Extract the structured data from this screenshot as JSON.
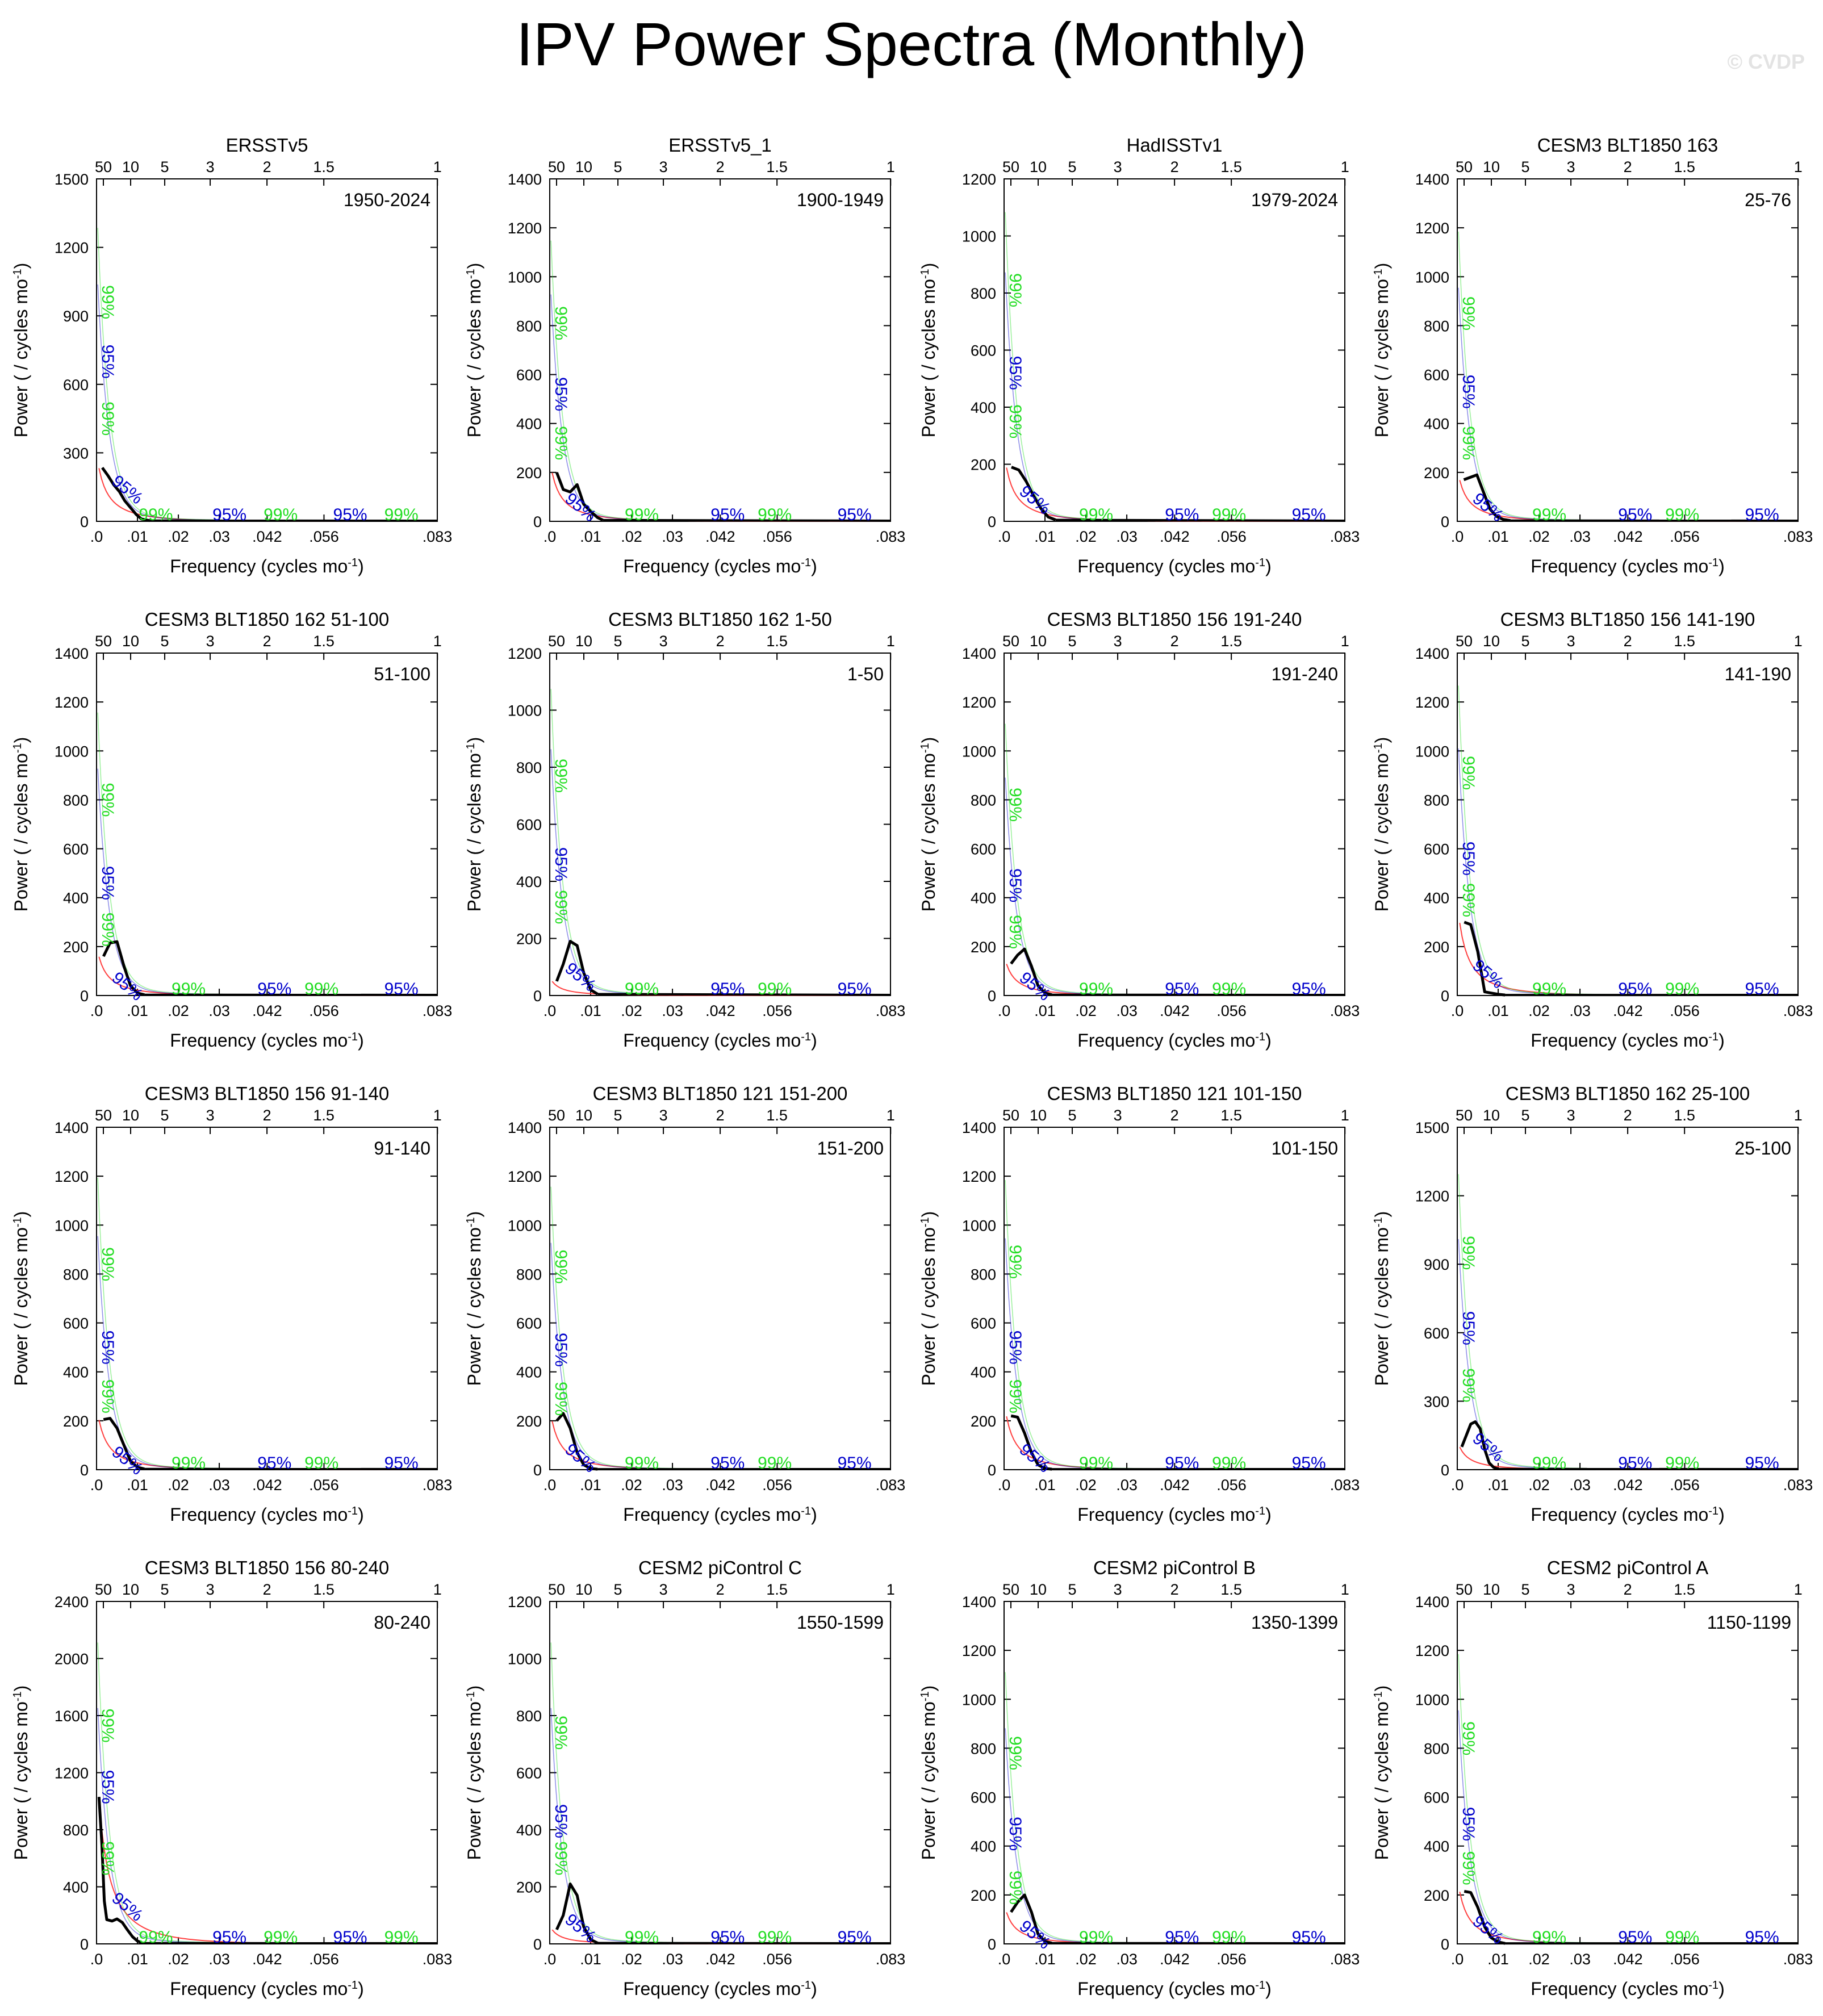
{
  "title": "IPV Power Spectra (Monthly)",
  "watermark": "© CVDP",
  "axes": {
    "xlabel": "Frequency (cycles mo",
    "xlabel_sup": "-1",
    "xlabel_end": ")",
    "ylabel": "Power ( / cycles mo",
    "ylabel_sup": "-1",
    "ylabel_end": ")",
    "xlim": [
      0,
      0.0833
    ],
    "bottom_ticks": [
      {
        "value": 0,
        "label": ".0"
      },
      {
        "value": 0.01,
        "label": ".01"
      },
      {
        "value": 0.02,
        "label": ".02"
      },
      {
        "value": 0.03,
        "label": ".03"
      },
      {
        "value": 0.0417,
        "label": ".042"
      },
      {
        "value": 0.0556,
        "label": ".056"
      },
      {
        "value": 0.0833,
        "label": ".083"
      }
    ],
    "top_ticks": [
      {
        "period": 50,
        "label": "50"
      },
      {
        "period": 10,
        "label": "10"
      },
      {
        "period": 5,
        "label": "5"
      },
      {
        "period": 3,
        "label": "3"
      },
      {
        "period": 2,
        "label": "2"
      },
      {
        "period": 1.5,
        "label": "1.5"
      },
      {
        "period": 1,
        "label": "1"
      }
    ],
    "top_axis_unit": "years"
  },
  "confidence_labels": {
    "p95": "95%",
    "p99": "99%"
  },
  "colors": {
    "spectrum": "#000000",
    "red_noise": "#ff4040",
    "p95": "#0000cc",
    "p99": "#22dd22",
    "frame": "#000000"
  },
  "chart_data": [
    {
      "type": "line",
      "title": "ERSSTv5",
      "period": "1950-2024",
      "ylim": [
        0,
        1500
      ],
      "yticks": [
        0,
        300,
        600,
        900,
        1200,
        1500
      ],
      "peak99": 1400,
      "peak95": 1130,
      "x": [
        0.0014,
        0.0028,
        0.0042,
        0.0056,
        0.0069,
        0.0083,
        0.0097,
        0.011,
        0.013
      ],
      "y": [
        235,
        200,
        160,
        130,
        90,
        60,
        30,
        10,
        3
      ],
      "lbl_upper": {
        "p99": 960,
        "p95": 700,
        "p99b": 450
      },
      "lbl_lower": {
        "p95": 120
      }
    },
    {
      "type": "line",
      "title": "ERSSTv5_1",
      "period": "1900-1949",
      "ylim": [
        0,
        1400
      ],
      "yticks": [
        0,
        200,
        400,
        600,
        800,
        1000,
        1200,
        1400
      ],
      "peak99": 1250,
      "peak95": 1010,
      "x": [
        0.0017,
        0.0033,
        0.005,
        0.0067,
        0.0083,
        0.01,
        0.0117,
        0.013
      ],
      "y": [
        200,
        130,
        120,
        150,
        70,
        40,
        15,
        5
      ],
      "lbl_upper": {
        "p99": 810,
        "p95": 520,
        "p99b": 320
      },
      "lbl_lower": {
        "p95": 40
      }
    },
    {
      "type": "line",
      "title": "HadISSTv1",
      "period": "1979-2024",
      "ylim": [
        0,
        1200
      ],
      "yticks": [
        0,
        200,
        400,
        600,
        800,
        1000,
        1200
      ],
      "peak99": 1180,
      "peak95": 950,
      "x": [
        0.0018,
        0.0036,
        0.0054,
        0.0072,
        0.009,
        0.0108,
        0.0126
      ],
      "y": [
        190,
        180,
        140,
        90,
        45,
        15,
        5
      ],
      "lbl_upper": {
        "p99": 810,
        "p95": 520,
        "p99b": 350
      },
      "lbl_lower": {
        "p95": 60
      }
    },
    {
      "type": "line",
      "title": "CESM3 BLT1850 163",
      "period": "25-76",
      "ylim": [
        0,
        1400
      ],
      "yticks": [
        0,
        200,
        400,
        600,
        800,
        1000,
        1200,
        1400
      ],
      "peak99": 1290,
      "peak95": 1040,
      "x": [
        0.0016,
        0.0032,
        0.0048,
        0.0064,
        0.008,
        0.0096,
        0.0112,
        0.013
      ],
      "y": [
        170,
        180,
        190,
        120,
        50,
        20,
        8,
        3
      ],
      "lbl_upper": {
        "p99": 850,
        "p95": 530,
        "p99b": 320
      },
      "lbl_lower": {
        "p95": 40
      }
    },
    {
      "type": "line",
      "title": "CESM3 BLT1850 162 51-100",
      "period": "51-100",
      "ylim": [
        0,
        1400
      ],
      "yticks": [
        0,
        200,
        400,
        600,
        800,
        1000,
        1200,
        1400
      ],
      "peak99": 1260,
      "peak95": 1010,
      "x": [
        0.0017,
        0.0033,
        0.005,
        0.0067,
        0.0083,
        0.01,
        0.0117
      ],
      "y": [
        160,
        215,
        220,
        120,
        40,
        10,
        3
      ],
      "lbl_upper": {
        "p99": 800,
        "p95": 460,
        "p99b": 270
      },
      "lbl_lower": {
        "p95": 20
      }
    },
    {
      "type": "line",
      "title": "CESM3 BLT1850 162 1-50",
      "period": "1-50",
      "ylim": [
        0,
        1200
      ],
      "yticks": [
        0,
        200,
        400,
        600,
        800,
        1000,
        1200
      ],
      "peak99": 1170,
      "peak95": 940,
      "x": [
        0.0017,
        0.0033,
        0.005,
        0.0067,
        0.0083,
        0.01,
        0.0117
      ],
      "y": [
        50,
        110,
        190,
        175,
        80,
        20,
        5
      ],
      "lbl_upper": {
        "p99": 770,
        "p95": 460,
        "p99b": 310
      },
      "lbl_lower": {
        "p95": 50
      }
    },
    {
      "type": "line",
      "title": "CESM3 BLT1850 156 191-240",
      "period": "191-240",
      "ylim": [
        0,
        1400
      ],
      "yticks": [
        0,
        200,
        400,
        600,
        800,
        1000,
        1200,
        1400
      ],
      "peak99": 1210,
      "peak95": 970,
      "x": [
        0.0017,
        0.0033,
        0.005,
        0.0067,
        0.0083,
        0.01,
        0.0117
      ],
      "y": [
        130,
        165,
        190,
        120,
        40,
        10,
        3
      ],
      "lbl_upper": {
        "p99": 780,
        "p95": 450,
        "p99b": 260
      },
      "lbl_lower": {
        "p95": 20
      }
    },
    {
      "type": "line",
      "title": "CESM3 BLT1850 156 141-190",
      "period": "141-190",
      "ylim": [
        0,
        1400
      ],
      "yticks": [
        0,
        200,
        400,
        600,
        800,
        1000,
        1200,
        1400
      ],
      "peak99": 1380,
      "peak95": 1100,
      "x": [
        0.0017,
        0.0033,
        0.005,
        0.0067,
        0.0083,
        0.01,
        0.0117
      ],
      "y": [
        300,
        290,
        180,
        15,
        10,
        5,
        2
      ],
      "lbl_upper": {
        "p99": 910,
        "p95": 560,
        "p99b": 390
      },
      "lbl_lower": {
        "p95": 70
      }
    },
    {
      "type": "line",
      "title": "CESM3 BLT1850 156 91-140",
      "period": "91-140",
      "ylim": [
        0,
        1400
      ],
      "yticks": [
        0,
        200,
        400,
        600,
        800,
        1000,
        1200,
        1400
      ],
      "peak99": 1300,
      "peak95": 1040,
      "x": [
        0.0017,
        0.0033,
        0.005,
        0.0067,
        0.0083,
        0.01,
        0.0117
      ],
      "y": [
        205,
        210,
        170,
        100,
        35,
        10,
        3
      ],
      "lbl_upper": {
        "p99": 840,
        "p95": 500,
        "p99b": 300
      },
      "lbl_lower": {
        "p95": 20
      }
    },
    {
      "type": "line",
      "title": "CESM3 BLT1850 121 151-200",
      "period": "151-200",
      "ylim": [
        0,
        1400
      ],
      "yticks": [
        0,
        200,
        400,
        600,
        800,
        1000,
        1200,
        1400
      ],
      "peak99": 1260,
      "peak95": 1010,
      "x": [
        0.0017,
        0.0033,
        0.005,
        0.0067,
        0.0083,
        0.01,
        0.0117
      ],
      "y": [
        200,
        230,
        170,
        70,
        20,
        5,
        2
      ],
      "lbl_upper": {
        "p99": 830,
        "p95": 490,
        "p99b": 290
      },
      "lbl_lower": {
        "p95": 30
      }
    },
    {
      "type": "line",
      "title": "CESM3 BLT1850 121 101-150",
      "period": "101-150",
      "ylim": [
        0,
        1400
      ],
      "yticks": [
        0,
        200,
        400,
        600,
        800,
        1000,
        1200,
        1400
      ],
      "peak99": 1290,
      "peak95": 1030,
      "x": [
        0.0017,
        0.0033,
        0.005,
        0.0067,
        0.0083,
        0.01,
        0.0117
      ],
      "y": [
        220,
        215,
        150,
        70,
        20,
        5,
        2
      ],
      "lbl_upper": {
        "p99": 850,
        "p95": 500,
        "p99b": 300
      },
      "lbl_lower": {
        "p95": 30
      }
    },
    {
      "type": "line",
      "title": "CESM3 BLT1850 162 25-100",
      "period": "25-100",
      "ylim": [
        0,
        1500
      ],
      "yticks": [
        0,
        300,
        600,
        900,
        1200,
        1500
      ],
      "peak99": 1410,
      "peak95": 1100,
      "x": [
        0.0011,
        0.0022,
        0.0033,
        0.0044,
        0.0056,
        0.0067,
        0.0078,
        0.0089,
        0.01
      ],
      "y": [
        100,
        150,
        200,
        210,
        180,
        90,
        30,
        10,
        3
      ],
      "lbl_upper": {
        "p99": 950,
        "p95": 620,
        "p99b": 370
      },
      "lbl_lower": {
        "p95": 80
      }
    },
    {
      "type": "line",
      "title": "CESM3 BLT1850 156 80-240",
      "period": "80-240",
      "ylim": [
        0,
        2400
      ],
      "yticks": [
        0,
        400,
        800,
        1200,
        1600,
        2000,
        2400
      ],
      "peak99": 2300,
      "peak95": 1800,
      "x": [
        0.0006,
        0.0013,
        0.0019,
        0.0025,
        0.0038,
        0.005,
        0.0063,
        0.0075,
        0.0088,
        0.01,
        0.0113
      ],
      "y": [
        1030,
        700,
        300,
        170,
        160,
        175,
        150,
        100,
        50,
        20,
        5
      ],
      "lbl_upper": {
        "p99": 1530,
        "p95": 1100,
        "p99b": 600
      },
      "lbl_lower": {
        "p95": 230
      }
    },
    {
      "type": "line",
      "title": "CESM2 piControl C",
      "period": "1550-1599",
      "ylim": [
        0,
        1200
      ],
      "yticks": [
        0,
        200,
        400,
        600,
        800,
        1000,
        1200
      ],
      "peak99": 1150,
      "peak95": 900,
      "x": [
        0.0017,
        0.0033,
        0.005,
        0.0067,
        0.0083,
        0.01,
        0.0117
      ],
      "y": [
        50,
        100,
        210,
        170,
        60,
        15,
        3
      ],
      "lbl_upper": {
        "p99": 740,
        "p95": 430,
        "p99b": 300
      },
      "lbl_lower": {
        "p95": 40
      }
    },
    {
      "type": "line",
      "title": "CESM2 piControl B",
      "period": "1350-1399",
      "ylim": [
        0,
        1400
      ],
      "yticks": [
        0,
        200,
        400,
        600,
        800,
        1000,
        1200,
        1400
      ],
      "peak99": 1210,
      "peak95": 960,
      "x": [
        0.0017,
        0.0033,
        0.005,
        0.0067,
        0.0083,
        0.01,
        0.0117
      ],
      "y": [
        130,
        170,
        200,
        130,
        40,
        10,
        3
      ],
      "lbl_upper": {
        "p99": 780,
        "p95": 450,
        "p99b": 230
      },
      "lbl_lower": {
        "p95": 20
      }
    },
    {
      "type": "line",
      "title": "CESM2 piControl A",
      "period": "1150-1199",
      "ylim": [
        0,
        1400
      ],
      "yticks": [
        0,
        200,
        400,
        600,
        800,
        1000,
        1200,
        1400
      ],
      "peak99": 1290,
      "peak95": 1040,
      "x": [
        0.0017,
        0.0033,
        0.005,
        0.0067,
        0.0083,
        0.01,
        0.0117
      ],
      "y": [
        215,
        210,
        150,
        70,
        25,
        8,
        2
      ],
      "lbl_upper": {
        "p99": 840,
        "p95": 490,
        "p99b": 310
      },
      "lbl_lower": {
        "p95": 40
      }
    }
  ]
}
